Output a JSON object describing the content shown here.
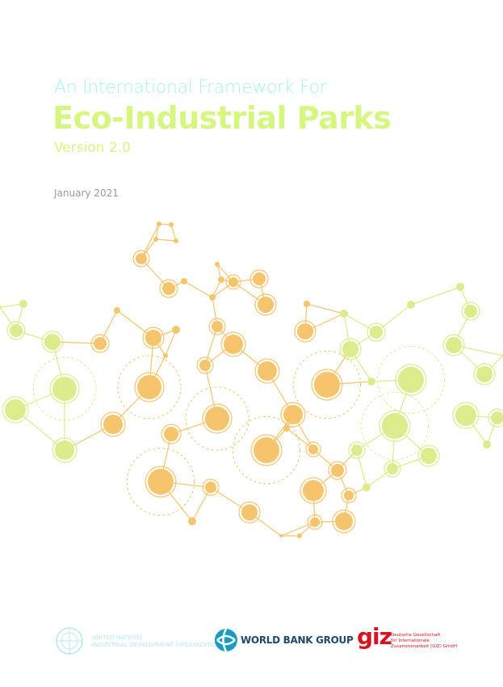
{
  "cover": {
    "pretitle": "An International Framework For",
    "title": "Eco-Industrial Parks",
    "version": "Version 2.0",
    "date": "January 2021"
  },
  "colors": {
    "pretitle": "#a6f3ea",
    "title": "#d5f77f",
    "network_warm": "#f6c46c",
    "network_green": "#dcec8c"
  },
  "logos": {
    "unido": {
      "mark": "UNIDO",
      "line1": "UNITED NATIONS",
      "line2": "INDUSTRIAL DEVELOPMENT ORGANIZATION"
    },
    "worldbank": {
      "name": "WORLD BANK GROUP"
    },
    "giz": {
      "mark": "giz",
      "line1": "Deutsche Gesellschaft",
      "line2": "für Internationale",
      "line3": "Zusammenarbeit (GIZ) GmbH"
    }
  }
}
